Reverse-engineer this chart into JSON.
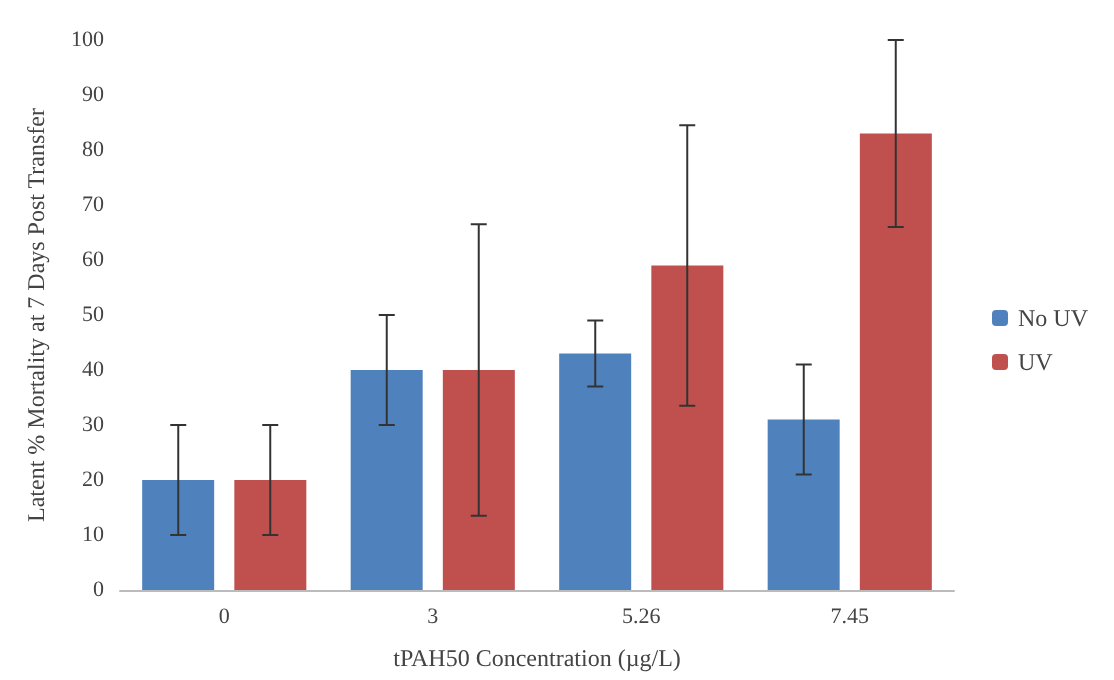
{
  "chart_data": {
    "type": "bar",
    "xlabel": "tPAH50 Concentration (µg/L)",
    "ylabel": "Latent % Mortality at 7 Days Post Transfer",
    "categories": [
      "0",
      "3",
      "5.26",
      "7.45"
    ],
    "series": [
      {
        "name": "No UV",
        "color": "#4f81bd",
        "values": [
          20,
          40,
          43,
          31
        ],
        "errors": [
          10,
          10,
          6,
          10
        ]
      },
      {
        "name": "UV",
        "color": "#c0504d",
        "values": [
          20,
          40,
          59,
          83
        ],
        "errors": [
          10,
          26.5,
          25.5,
          17
        ]
      }
    ],
    "ylim": [
      0,
      100
    ],
    "yticks": [
      0,
      10,
      20,
      30,
      40,
      50,
      60,
      70,
      80,
      90,
      100
    ],
    "grid": false,
    "legend": "right"
  }
}
